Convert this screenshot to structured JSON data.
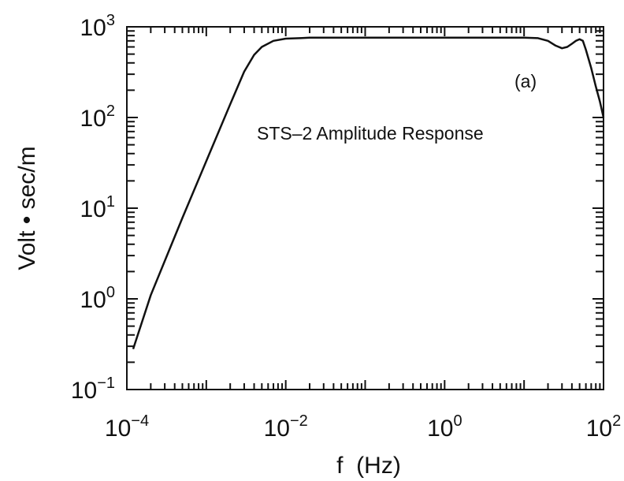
{
  "chart_data": {
    "type": "line",
    "title": "",
    "annotation_title": "STS–2 Amplitude Response",
    "panel_label": "(a)",
    "xlabel": "f  (Hz)",
    "ylabel": "Volt • sec/m",
    "x_scale": "log",
    "y_scale": "log",
    "xlim": [
      0.0001,
      100
    ],
    "ylim": [
      0.1,
      1000
    ],
    "x_ticks": [
      {
        "base": "10",
        "exp": "−4"
      },
      {
        "base": "10",
        "exp": "−2"
      },
      {
        "base": "10",
        "exp": "0"
      },
      {
        "base": "10",
        "exp": "2"
      }
    ],
    "y_ticks": [
      {
        "base": "10",
        "exp": "−1"
      },
      {
        "base": "10",
        "exp": "0"
      },
      {
        "base": "10",
        "exp": "1"
      },
      {
        "base": "10",
        "exp": "2"
      },
      {
        "base": "10",
        "exp": "3"
      }
    ],
    "grid": false,
    "series": [
      {
        "x": [
          0.00012,
          0.0002,
          0.0005,
          0.001,
          0.002,
          0.003,
          0.004,
          0.005,
          0.007,
          0.01,
          0.015,
          0.02,
          0.05,
          0.1,
          1,
          5,
          10,
          15,
          20,
          25,
          30,
          35,
          40,
          45,
          50,
          55,
          60,
          70,
          80,
          90,
          100
        ],
        "y": [
          0.28,
          1.1,
          7.8,
          33,
          140,
          320,
          490,
          600,
          700,
          740,
          750,
          760,
          760,
          760,
          760,
          760,
          760,
          750,
          700,
          620,
          580,
          600,
          650,
          700,
          730,
          700,
          560,
          350,
          220,
          150,
          100
        ]
      }
    ]
  }
}
